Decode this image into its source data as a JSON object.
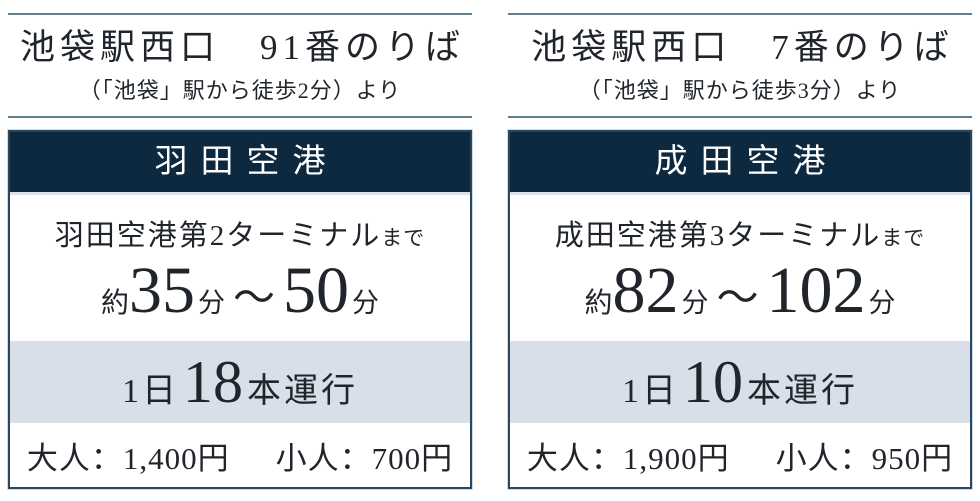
{
  "colors": {
    "navy_banner": "#0d2940",
    "rule_line": "#607e93",
    "frequency_band_bg": "#d9dfe9",
    "card_border": "#28465f",
    "body_text": "#20252b",
    "banner_text": "#ffffff"
  },
  "panels": [
    {
      "stop_title": "池袋駅西口　91番のりば",
      "stop_subtitle": "（「池袋」駅から徒歩2分）より",
      "destination": "羽田空港",
      "terminal_name": "羽田空港第2ターミナル",
      "terminal_suffix": "まで",
      "time_prefix": "約",
      "time_from": "35",
      "time_separator": "～",
      "time_to": "50",
      "time_unit": "分",
      "frequency_prefix": "1日",
      "frequency_count": "18",
      "frequency_suffix": "本運行",
      "fare_adult": "大人：1,400円",
      "fare_child": "小人：700円"
    },
    {
      "stop_title": "池袋駅西口　7番のりば",
      "stop_subtitle": "（「池袋」駅から徒歩3分）より",
      "destination": "成田空港",
      "terminal_name": "成田空港第3ターミナル",
      "terminal_suffix": "まで",
      "time_prefix": "約",
      "time_from": "82",
      "time_separator": "～",
      "time_to": "102",
      "time_unit": "分",
      "frequency_prefix": "1日",
      "frequency_count": "10",
      "frequency_suffix": "本運行",
      "fare_adult": "大人：1,900円",
      "fare_child": "小人：950円"
    }
  ]
}
